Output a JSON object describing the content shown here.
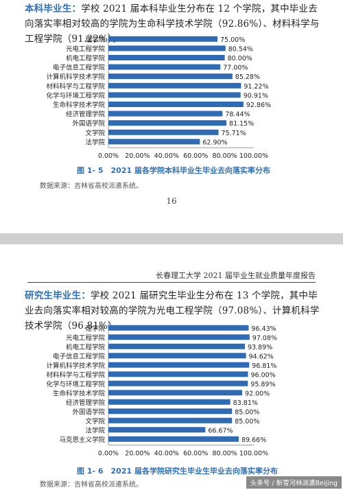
{
  "top": {
    "paragraph_lead": "本科毕业生：",
    "paragraph_body": "学校 2021 届本科毕业生分布在 12 个学院，其中毕业去向落实率相对较高的学院为生命科学技术学院（92.86%）、材料科学与工程学院（91.22%）。",
    "caption": "图 1- 5　2021 届各学院本科毕业生毕业去向落实率分布",
    "source": "数据来源：吉林省高校派遣系统。",
    "page_number": "16"
  },
  "bottom": {
    "header": "长春理工大学 2021 届毕业生就业质量年度报告",
    "paragraph_lead": "研究生毕业生：",
    "paragraph_body": "学校 2021 届研究生毕业生分布在 13 个学院，其中毕业去向落实率相对较高的学院为光电工程学院（97.08%）、计算机科学技术学院（96.81%）。",
    "caption": "图 1- 6　2021 届各学院研究生毕业生毕业去向落实率分布",
    "source": "数据来源：吉林省高校派遣系统。",
    "watermark": "头条号 / 新雪河林派遣Beijing"
  },
  "colors": {
    "bar": "#2f6ab4",
    "accent": "#2e6fb7",
    "axis": "#999999"
  },
  "chart_data": [
    {
      "type": "bar",
      "orientation": "horizontal",
      "title": "",
      "categories": [
        "理学院",
        "光电工程学院",
        "机电工程学院",
        "电子信息工程学院",
        "计算机科学技术学院",
        "材料科学与工程学院",
        "化学与环境工程学院",
        "生命科学技术学院",
        "经济管理学院",
        "外国语学院",
        "文学院",
        "法学院"
      ],
      "values": [
        75.0,
        80.54,
        80.0,
        77.0,
        85.28,
        91.22,
        90.91,
        92.86,
        78.44,
        81.15,
        75.71,
        62.9
      ],
      "value_labels": [
        "75.00%",
        "80.54%",
        "80.00%",
        "77.00%",
        "85.28%",
        "91.22%",
        "90.91%",
        "92.86%",
        "78.44%",
        "81.15%",
        "75.71%",
        "62.90%"
      ],
      "xlim": [
        0,
        100
      ],
      "tick_labels": [
        "0.00%",
        "20.00%",
        "40.00%",
        "60.00%",
        "80.00%",
        "100.00%"
      ],
      "grid": false
    },
    {
      "type": "bar",
      "orientation": "horizontal",
      "title": "",
      "categories": [
        "理学院",
        "光电工程学院",
        "机电工程学院",
        "电子信息工程学院",
        "计算机科学技术学院",
        "材料科学与工程学院",
        "化学与环境工程学院",
        "生命科学技术学院",
        "经济管理学院",
        "外国语学院",
        "文学院",
        "法学院",
        "马克思主义学院"
      ],
      "values": [
        96.43,
        97.08,
        93.89,
        94.62,
        96.81,
        96.0,
        95.89,
        92.0,
        83.81,
        85.0,
        85.0,
        66.67,
        89.66
      ],
      "value_labels": [
        "96.43%",
        "97.08%",
        "93.89%",
        "94.62%",
        "96.81%",
        "96.00%",
        "95.89%",
        "92.00%",
        "83.81%",
        "85.00%",
        "85.00%",
        "66.67%",
        "89.66%"
      ],
      "xlim": [
        0,
        100
      ],
      "tick_labels": [
        "0.00%",
        "20.00%",
        "40.00%",
        "60.00%",
        "80.00%",
        "100.00%"
      ],
      "grid": false
    }
  ]
}
